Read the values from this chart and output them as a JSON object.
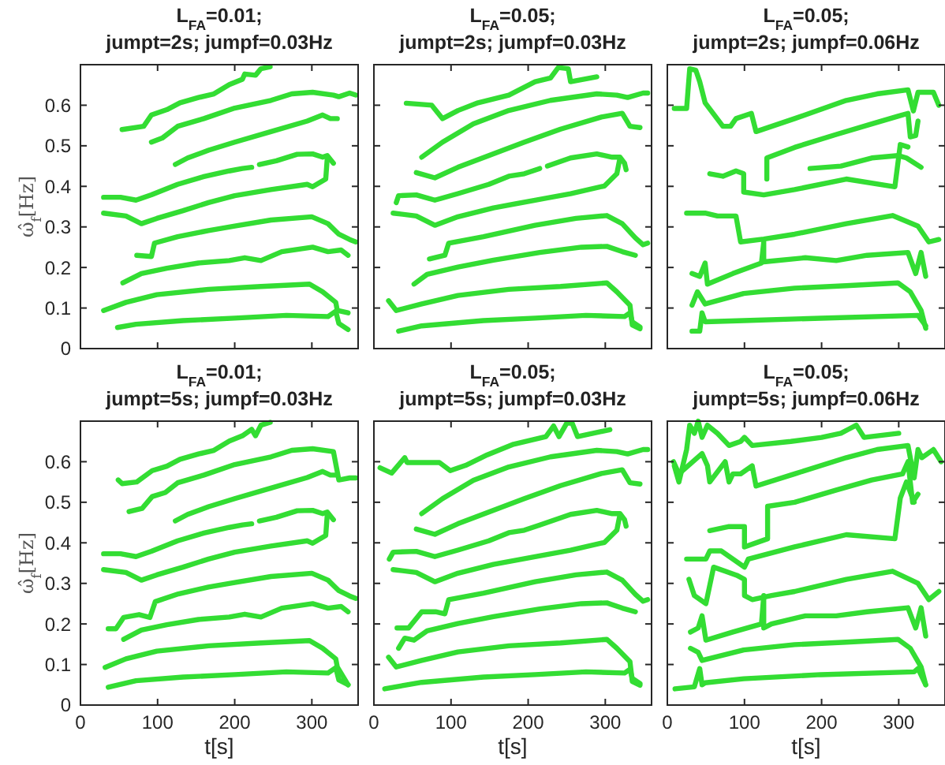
{
  "chart_data": [
    {
      "type": "line",
      "title": "L$_{FA}$=0.01;\njumpt=2s; jumpf=0.03Hz",
      "ylabel": "ω̂$_{f}$[Hz]",
      "xlim": [
        0,
        360
      ],
      "ylim": [
        0,
        0.7
      ],
      "xticks": [
        0,
        100,
        200,
        300
      ],
      "yticks": [
        0,
        0.1,
        0.2,
        0.3,
        0.4,
        0.5,
        0.6
      ],
      "tick_labels": "y",
      "series": [
        {
          "color": "#33dd33",
          "x": [
            54,
            82,
            92,
            112,
            129,
            153,
            173,
            193,
            210,
            213,
            227,
            234,
            246
          ],
          "values": [
            0.54,
            0.548,
            0.576,
            0.589,
            0.606,
            0.619,
            0.628,
            0.651,
            0.664,
            0.677,
            0.674,
            0.69,
            0.695
          ]
        },
        {
          "color": "#33dd33",
          "x": [
            92,
            106,
            126,
            160,
            200,
            247,
            274,
            301,
            328,
            335,
            349,
            357
          ],
          "values": [
            0.509,
            0.519,
            0.548,
            0.567,
            0.593,
            0.612,
            0.628,
            0.632,
            0.625,
            0.621,
            0.63,
            0.625
          ]
        },
        {
          "color": "#33dd33",
          "x": [
            123,
            139,
            166,
            200,
            247,
            294,
            314,
            324,
            333
          ],
          "values": [
            0.454,
            0.47,
            0.489,
            0.509,
            0.535,
            0.561,
            0.576,
            0.567,
            0.567
          ]
        },
        {
          "color": "#33dd33",
          "x": [
            30,
            52,
            72,
            92,
            126,
            160,
            193,
            210,
            222,
            227,
            232,
            254,
            281,
            301,
            314,
            320,
            328
          ],
          "values": [
            0.373,
            0.373,
            0.366,
            0.379,
            0.405,
            0.424,
            0.438,
            0.444,
            0.447,
            null,
            0.454,
            0.463,
            0.479,
            0.48,
            0.472,
            0.476,
            0.457
          ]
        },
        {
          "color": "#33dd33",
          "x": [
            30,
            59,
            79,
            99,
            133,
            166,
            200,
            247,
            294,
            301,
            318,
            320
          ],
          "values": [
            0.334,
            0.327,
            0.308,
            0.321,
            0.34,
            0.36,
            0.377,
            0.392,
            0.405,
            0.399,
            0.418,
            0.47
          ]
        },
        {
          "color": "#33dd33",
          "x": [
            73,
            92,
            96,
            126,
            166,
            200,
            247,
            300,
            321,
            335,
            349,
            357
          ],
          "values": [
            0.23,
            0.227,
            0.26,
            0.276,
            0.291,
            0.302,
            0.317,
            0.325,
            0.308,
            0.282,
            0.269,
            0.263
          ]
        },
        {
          "color": "#33dd33",
          "x": [
            55,
            79,
            112,
            153,
            193,
            213,
            234,
            261,
            301,
            321,
            338,
            347
          ],
          "values": [
            0.162,
            0.185,
            0.198,
            0.211,
            0.217,
            0.224,
            0.217,
            0.239,
            0.25,
            0.239,
            0.243,
            0.23
          ]
        },
        {
          "color": "#33dd33",
          "x": [
            30,
            59,
            99,
            166,
            234,
            297,
            314,
            331,
            333,
            347
          ],
          "values": [
            0.094,
            0.114,
            0.133,
            0.146,
            0.153,
            0.159,
            0.14,
            0.114,
            0.094,
            0.088
          ]
        },
        {
          "color": "#33dd33",
          "x": [
            48,
            72,
            133,
            200,
            267,
            321,
            331,
            335,
            347
          ],
          "values": [
            0.052,
            0.06,
            0.069,
            0.075,
            0.082,
            0.079,
            0.092,
            0.062,
            0.047
          ]
        }
      ]
    },
    {
      "type": "line",
      "title": "L$_{FA}$=0.05;\njumpt=2s; jumpf=0.03Hz",
      "xlim": [
        0,
        360
      ],
      "ylim": [
        0,
        0.7
      ],
      "xticks": [
        0,
        100,
        200,
        300
      ],
      "yticks": [
        0,
        0.1,
        0.2,
        0.3,
        0.4,
        0.5,
        0.6
      ],
      "tick_labels": false,
      "series": [
        {
          "color": "#33dd33",
          "x": [
            42,
            75,
            89,
            109,
            135,
            175,
            209,
            229,
            239,
            252,
            255,
            289
          ],
          "values": [
            0.605,
            0.6,
            0.567,
            0.587,
            0.606,
            0.625,
            0.658,
            0.667,
            0.693,
            0.69,
            0.658,
            0.67
          ]
        },
        {
          "color": "#33dd33",
          "x": [
            62,
            89,
            129,
            175,
            229,
            289,
            315,
            329,
            349,
            355
          ],
          "values": [
            0.472,
            0.509,
            0.554,
            0.587,
            0.612,
            0.628,
            0.625,
            0.619,
            0.63,
            0.63
          ]
        },
        {
          "color": "#33dd33",
          "x": [
            55,
            79,
            109,
            149,
            195,
            242,
            295,
            322,
            332,
            345
          ],
          "values": [
            0.434,
            0.421,
            0.447,
            0.476,
            0.509,
            0.541,
            0.571,
            0.58,
            0.548,
            0.545
          ]
        },
        {
          "color": "#33dd33",
          "x": [
            29,
            32,
            55,
            79,
            109,
            149,
            175,
            195,
            215,
            220,
            225,
            255,
            289,
            309,
            319,
            325,
            327
          ],
          "values": [
            0.36,
            0.377,
            0.379,
            0.366,
            0.382,
            0.405,
            0.425,
            0.431,
            0.444,
            null,
            0.45,
            0.47,
            0.48,
            0.472,
            0.472,
            0.457,
            0.441
          ]
        },
        {
          "color": "#33dd33",
          "x": [
            25,
            55,
            79,
            109,
            155,
            209,
            255,
            299,
            315,
            319
          ],
          "values": [
            0.334,
            0.327,
            0.304,
            0.325,
            0.347,
            0.366,
            0.382,
            0.401,
            0.431,
            0.47
          ]
        },
        {
          "color": "#33dd33",
          "x": [
            72,
            92,
            97,
            142,
            209,
            262,
            302,
            322,
            339,
            349,
            355
          ],
          "values": [
            0.221,
            0.23,
            0.26,
            0.276,
            0.304,
            0.321,
            0.328,
            0.308,
            0.273,
            0.256,
            0.26
          ]
        },
        {
          "color": "#33dd33",
          "x": [
            52,
            69,
            109,
            155,
            215,
            269,
            302,
            322,
            339
          ],
          "values": [
            0.159,
            0.183,
            0.201,
            0.218,
            0.237,
            0.25,
            0.252,
            0.239,
            0.23
          ]
        },
        {
          "color": "#33dd33",
          "x": [
            19,
            29,
            62,
            109,
            175,
            242,
            302,
            315,
            332,
            335,
            345
          ],
          "values": [
            0.118,
            0.094,
            0.11,
            0.131,
            0.146,
            0.153,
            0.162,
            0.14,
            0.107,
            0.058,
            0.049
          ]
        },
        {
          "color": "#33dd33",
          "x": [
            32,
            62,
            142,
            209,
            275,
            325,
            332,
            335,
            345
          ],
          "values": [
            0.043,
            0.056,
            0.069,
            0.075,
            0.082,
            0.079,
            0.088,
            0.066,
            0.053
          ]
        }
      ]
    },
    {
      "type": "line",
      "title": "L$_{FA}$=0.05;\njumpt=2s; jumpf=0.06Hz",
      "xlim": [
        0,
        360
      ],
      "ylim": [
        0,
        0.7
      ],
      "xticks": [
        0,
        100,
        200,
        300
      ],
      "yticks": [
        0,
        0.1,
        0.2,
        0.3,
        0.4,
        0.5,
        0.6
      ],
      "tick_labels": false,
      "series": [
        {
          "color": "#33dd33",
          "x": [
            9,
            25,
            29,
            37,
            42,
            49,
            72,
            82,
            89,
            109,
            115,
            165,
            232,
            272,
            312,
            319,
            325,
            345,
            352
          ],
          "values": [
            0.592,
            0.592,
            0.69,
            0.686,
            0.658,
            0.606,
            0.548,
            0.548,
            0.567,
            0.58,
            0.535,
            0.567,
            0.612,
            0.628,
            0.638,
            0.586,
            0.632,
            0.632,
            0.6
          ]
        },
        {
          "color": "#33dd33",
          "x": [
            129,
            129,
            165,
            219,
            265,
            299,
            312,
            315,
            322,
            325
          ],
          "values": [
            0.418,
            0.47,
            0.496,
            0.528,
            0.554,
            0.573,
            0.58,
            0.522,
            0.525,
            0.561
          ]
        },
        {
          "color": "#33dd33",
          "x": [
            55,
            72,
            89,
            99,
            99,
            125,
            165,
            232,
            295,
            302,
            312
          ],
          "values": [
            0.431,
            0.425,
            0.438,
            0.431,
            0.386,
            0.379,
            0.392,
            0.418,
            0.399,
            0.503,
            0.497
          ]
        },
        {
          "color": "#33dd33",
          "x": [
            185,
            225,
            265,
            299,
            310,
            329
          ],
          "values": [
            0.444,
            0.45,
            0.47,
            0.476,
            0.47,
            0.447
          ]
        },
        {
          "color": "#33dd33",
          "x": [
            25,
            49,
            65,
            89,
            95,
            125,
            165,
            232,
            292,
            325,
            339,
            352
          ],
          "values": [
            0.334,
            0.334,
            0.327,
            0.327,
            0.263,
            0.27,
            0.282,
            0.308,
            0.328,
            0.302,
            0.263,
            0.269
          ]
        },
        {
          "color": "#33dd33",
          "x": [
            32,
            42,
            49,
            52,
            85,
            122,
            125,
            125,
            179,
            219,
            259,
            312,
            322,
            329,
            335
          ],
          "values": [
            0.185,
            0.178,
            0.211,
            0.159,
            0.185,
            0.211,
            0.263,
            0.214,
            0.224,
            0.217,
            0.23,
            0.237,
            0.185,
            0.237,
            0.178
          ]
        },
        {
          "color": "#33dd33",
          "x": [
            32,
            39,
            49,
            99,
            165,
            232,
            299,
            315,
            329,
            335
          ],
          "values": [
            0.107,
            0.14,
            0.11,
            0.136,
            0.149,
            0.155,
            0.162,
            0.14,
            0.094,
            0.05
          ]
        },
        {
          "color": "#33dd33",
          "x": [
            32,
            42,
            45,
            49,
            99,
            199,
            325,
            335
          ],
          "values": [
            0.043,
            0.043,
            0.088,
            0.066,
            0.069,
            0.075,
            0.082,
            0.056
          ]
        }
      ]
    },
    {
      "type": "line",
      "title": "L$_{FA}$=0.01;\njumpt=5s; jumpf=0.03Hz",
      "xlabel": "t[s]",
      "ylabel": "ω̂$_{f}$[Hz]",
      "xlim": [
        0,
        360
      ],
      "ylim": [
        0,
        0.7
      ],
      "xticks": [
        0,
        100,
        200,
        300
      ],
      "yticks": [
        0,
        0.1,
        0.2,
        0.3,
        0.4,
        0.5,
        0.6
      ],
      "series": [
        {
          "color": "#33dd33",
          "x": [
            49,
            54,
            73,
            93,
            112,
            129,
            153,
            173,
            193,
            210,
            222,
            227,
            234,
            246
          ],
          "values": [
            0.555,
            0.546,
            0.55,
            0.578,
            0.589,
            0.606,
            0.619,
            0.628,
            0.651,
            0.664,
            0.68,
            0.664,
            0.69,
            0.697
          ]
        },
        {
          "color": "#33dd33",
          "x": [
            63,
            80,
            93,
            110,
            126,
            160,
            200,
            247,
            274,
            301,
            328,
            335,
            349,
            357
          ],
          "values": [
            0.477,
            0.485,
            0.514,
            0.524,
            0.548,
            0.567,
            0.593,
            0.612,
            0.628,
            0.632,
            0.625,
            0.555,
            0.56,
            0.56
          ]
        },
        {
          "color": "#33dd33",
          "x": [
            123,
            139,
            166,
            200,
            247,
            294,
            314,
            324,
            333
          ],
          "values": [
            0.454,
            0.47,
            0.489,
            0.509,
            0.535,
            0.561,
            0.576,
            0.567,
            0.567
          ]
        },
        {
          "color": "#33dd33",
          "x": [
            30,
            52,
            72,
            92,
            126,
            160,
            193,
            210,
            222,
            227,
            232,
            254,
            281,
            301,
            314,
            320,
            328
          ],
          "values": [
            0.373,
            0.373,
            0.366,
            0.379,
            0.405,
            0.424,
            0.438,
            0.444,
            0.447,
            null,
            0.454,
            0.463,
            0.479,
            0.48,
            0.472,
            0.476,
            0.457
          ]
        },
        {
          "color": "#33dd33",
          "x": [
            30,
            59,
            79,
            99,
            133,
            166,
            200,
            247,
            294,
            301,
            318,
            320
          ],
          "values": [
            0.334,
            0.327,
            0.308,
            0.321,
            0.34,
            0.36,
            0.377,
            0.392,
            0.405,
            0.399,
            0.418,
            0.47
          ]
        },
        {
          "color": "#33dd33",
          "x": [
            36,
            46,
            56,
            76,
            90,
            97,
            127,
            166,
            200,
            247,
            300,
            321,
            335,
            349,
            357
          ],
          "values": [
            0.188,
            0.188,
            0.216,
            0.223,
            0.216,
            0.255,
            0.274,
            0.291,
            0.302,
            0.317,
            0.325,
            0.308,
            0.282,
            0.269,
            0.263
          ]
        },
        {
          "color": "#33dd33",
          "x": [
            56,
            79,
            112,
            153,
            193,
            213,
            234,
            261,
            301,
            321,
            338,
            347
          ],
          "values": [
            0.162,
            0.185,
            0.198,
            0.211,
            0.217,
            0.224,
            0.217,
            0.239,
            0.25,
            0.239,
            0.243,
            0.23
          ]
        },
        {
          "color": "#33dd33",
          "x": [
            32,
            59,
            99,
            166,
            234,
            297,
            314,
            331,
            333,
            347
          ],
          "values": [
            0.093,
            0.114,
            0.133,
            0.146,
            0.153,
            0.159,
            0.14,
            0.114,
            0.094,
            0.05
          ]
        },
        {
          "color": "#33dd33",
          "x": [
            36,
            72,
            133,
            200,
            267,
            321,
            331,
            335,
            347
          ],
          "values": [
            0.044,
            0.06,
            0.069,
            0.075,
            0.082,
            0.079,
            0.092,
            0.062,
            0.05
          ]
        }
      ]
    },
    {
      "type": "line",
      "title": "L$_{FA}$=0.05;\njumpt=5s; jumpf=0.03Hz",
      "xlabel": "t[s]",
      "xlim": [
        0,
        360
      ],
      "ylim": [
        0,
        0.7
      ],
      "xticks": [
        0,
        100,
        200,
        300
      ],
      "yticks": [
        0,
        0.1,
        0.2,
        0.3,
        0.4,
        0.5,
        0.6
      ],
      "tick_labels": "x",
      "series": [
        {
          "color": "#33dd33",
          "x": [
            8,
            23,
            40,
            43,
            85,
            99,
            119,
            147,
            181,
            223,
            233,
            240,
            250,
            257,
            264,
            306
          ],
          "values": [
            0.585,
            0.572,
            0.61,
            0.598,
            0.598,
            0.578,
            0.591,
            0.617,
            0.643,
            0.662,
            0.688,
            0.662,
            0.695,
            0.695,
            0.662,
            0.679
          ]
        },
        {
          "color": "#33dd33",
          "x": [
            62,
            89,
            129,
            175,
            229,
            289,
            315,
            329,
            349,
            355
          ],
          "values": [
            0.472,
            0.509,
            0.554,
            0.587,
            0.612,
            0.628,
            0.625,
            0.619,
            0.63,
            0.63
          ]
        },
        {
          "color": "#33dd33",
          "x": [
            55,
            79,
            109,
            149,
            195,
            242,
            295,
            322,
            332,
            345
          ],
          "values": [
            0.434,
            0.421,
            0.447,
            0.476,
            0.509,
            0.541,
            0.571,
            0.58,
            0.548,
            0.545
          ]
        },
        {
          "color": "#33dd33",
          "x": [
            20,
            25,
            55,
            79,
            109,
            149,
            175,
            195,
            215,
            255,
            289,
            309,
            319,
            325,
            327
          ],
          "values": [
            0.36,
            0.377,
            0.379,
            0.366,
            0.382,
            0.405,
            0.425,
            0.431,
            0.444,
            0.47,
            0.48,
            0.472,
            0.472,
            0.457,
            0.441
          ]
        },
        {
          "color": "#33dd33",
          "x": [
            25,
            55,
            79,
            109,
            155,
            209,
            255,
            299,
            315,
            319
          ],
          "values": [
            0.334,
            0.327,
            0.304,
            0.325,
            0.347,
            0.366,
            0.382,
            0.401,
            0.431,
            0.47
          ]
        },
        {
          "color": "#33dd33",
          "x": [
            30,
            45,
            62,
            80,
            92,
            97,
            142,
            209,
            262,
            302,
            322,
            339,
            349,
            355
          ],
          "values": [
            0.19,
            0.19,
            0.23,
            0.23,
            0.225,
            0.26,
            0.276,
            0.304,
            0.321,
            0.328,
            0.308,
            0.273,
            0.256,
            0.26
          ]
        },
        {
          "color": "#33dd33",
          "x": [
            32,
            40,
            52,
            69,
            109,
            155,
            215,
            269,
            302,
            322,
            339
          ],
          "values": [
            0.14,
            0.165,
            0.16,
            0.183,
            0.201,
            0.218,
            0.237,
            0.25,
            0.252,
            0.239,
            0.23
          ]
        },
        {
          "color": "#33dd33",
          "x": [
            19,
            29,
            62,
            109,
            175,
            242,
            302,
            315,
            332,
            335,
            345
          ],
          "values": [
            0.118,
            0.094,
            0.11,
            0.131,
            0.146,
            0.153,
            0.162,
            0.14,
            0.107,
            0.058,
            0.049
          ]
        },
        {
          "color": "#33dd33",
          "x": [
            14,
            62,
            142,
            209,
            275,
            325,
            332,
            335,
            345
          ],
          "values": [
            0.04,
            0.056,
            0.069,
            0.075,
            0.082,
            0.079,
            0.088,
            0.066,
            0.053
          ]
        }
      ]
    },
    {
      "type": "line",
      "title": "L$_{FA}$=0.05;\njumpt=5s; jumpf=0.06Hz",
      "xlabel": "t[s]",
      "xlim": [
        0,
        360
      ],
      "ylim": [
        0,
        0.7
      ],
      "xticks": [
        0,
        100,
        200,
        300
      ],
      "yticks": [
        0,
        0.1,
        0.2,
        0.3,
        0.4,
        0.5,
        0.6
      ],
      "tick_labels": "x",
      "series": [
        {
          "color": "#33dd33",
          "x": [
            9,
            15,
            25,
            29,
            35,
            40,
            45,
            52,
            65,
            80,
            95,
            100,
            110,
            160,
            200,
            225,
            235,
            245,
            255,
            300
          ],
          "values": [
            0.59,
            0.55,
            0.63,
            0.69,
            0.67,
            0.7,
            0.66,
            0.69,
            0.67,
            0.64,
            0.65,
            0.66,
            0.64,
            0.65,
            0.66,
            0.67,
            0.68,
            0.69,
            0.66,
            0.67
          ]
        },
        {
          "color": "#33dd33",
          "x": [
            8,
            15,
            45,
            52,
            55,
            75,
            80,
            85,
            95,
            110,
            115,
            165,
            232,
            272,
            312,
            320,
            325,
            330,
            345,
            355
          ],
          "values": [
            0.6,
            0.57,
            0.62,
            0.59,
            0.55,
            0.6,
            0.55,
            0.57,
            0.57,
            0.59,
            0.54,
            0.57,
            0.61,
            0.63,
            0.64,
            0.56,
            0.63,
            0.61,
            0.63,
            0.6
          ]
        },
        {
          "color": "#33dd33",
          "x": [
            55,
            80,
            100,
            100,
            130,
            130,
            165,
            219,
            265,
            305,
            312,
            318,
            325
          ],
          "values": [
            0.43,
            0.44,
            0.44,
            0.39,
            0.41,
            0.49,
            0.5,
            0.53,
            0.555,
            0.57,
            0.6,
            0.5,
            0.52
          ]
        },
        {
          "color": "#33dd33",
          "x": [
            25,
            50,
            55,
            70,
            100,
            105,
            165,
            232,
            295,
            302,
            310,
            320
          ],
          "values": [
            0.36,
            0.36,
            0.38,
            0.38,
            0.34,
            0.36,
            0.39,
            0.42,
            0.41,
            0.51,
            0.55,
            0.5
          ]
        },
        {
          "color": "#33dd33",
          "x": [
            28,
            35,
            50,
            60,
            75,
            90,
            100,
            100,
            110,
            135,
            165,
            232,
            292,
            325,
            339,
            352
          ],
          "values": [
            0.31,
            0.27,
            0.25,
            0.34,
            0.33,
            0.32,
            0.31,
            0.27,
            0.26,
            0.27,
            0.28,
            0.31,
            0.33,
            0.3,
            0.26,
            0.28
          ]
        },
        {
          "color": "#33dd33",
          "x": [
            30,
            40,
            45,
            50,
            85,
            122,
            125,
            125,
            135,
            179,
            219,
            259,
            312,
            322,
            329,
            335
          ],
          "values": [
            0.18,
            0.19,
            0.22,
            0.16,
            0.18,
            0.2,
            0.27,
            0.19,
            0.2,
            0.22,
            0.22,
            0.23,
            0.24,
            0.19,
            0.24,
            0.17
          ]
        },
        {
          "color": "#33dd33",
          "x": [
            30,
            40,
            45,
            99,
            165,
            232,
            299,
            315,
            329,
            335
          ],
          "values": [
            0.14,
            0.13,
            0.11,
            0.136,
            0.149,
            0.155,
            0.162,
            0.14,
            0.094,
            0.05
          ]
        },
        {
          "color": "#33dd33",
          "x": [
            10,
            35,
            42,
            45,
            49,
            99,
            199,
            320,
            325,
            335
          ],
          "values": [
            0.04,
            0.045,
            0.09,
            0.05,
            0.055,
            0.065,
            0.075,
            0.082,
            0.09,
            0.05
          ]
        }
      ]
    }
  ]
}
